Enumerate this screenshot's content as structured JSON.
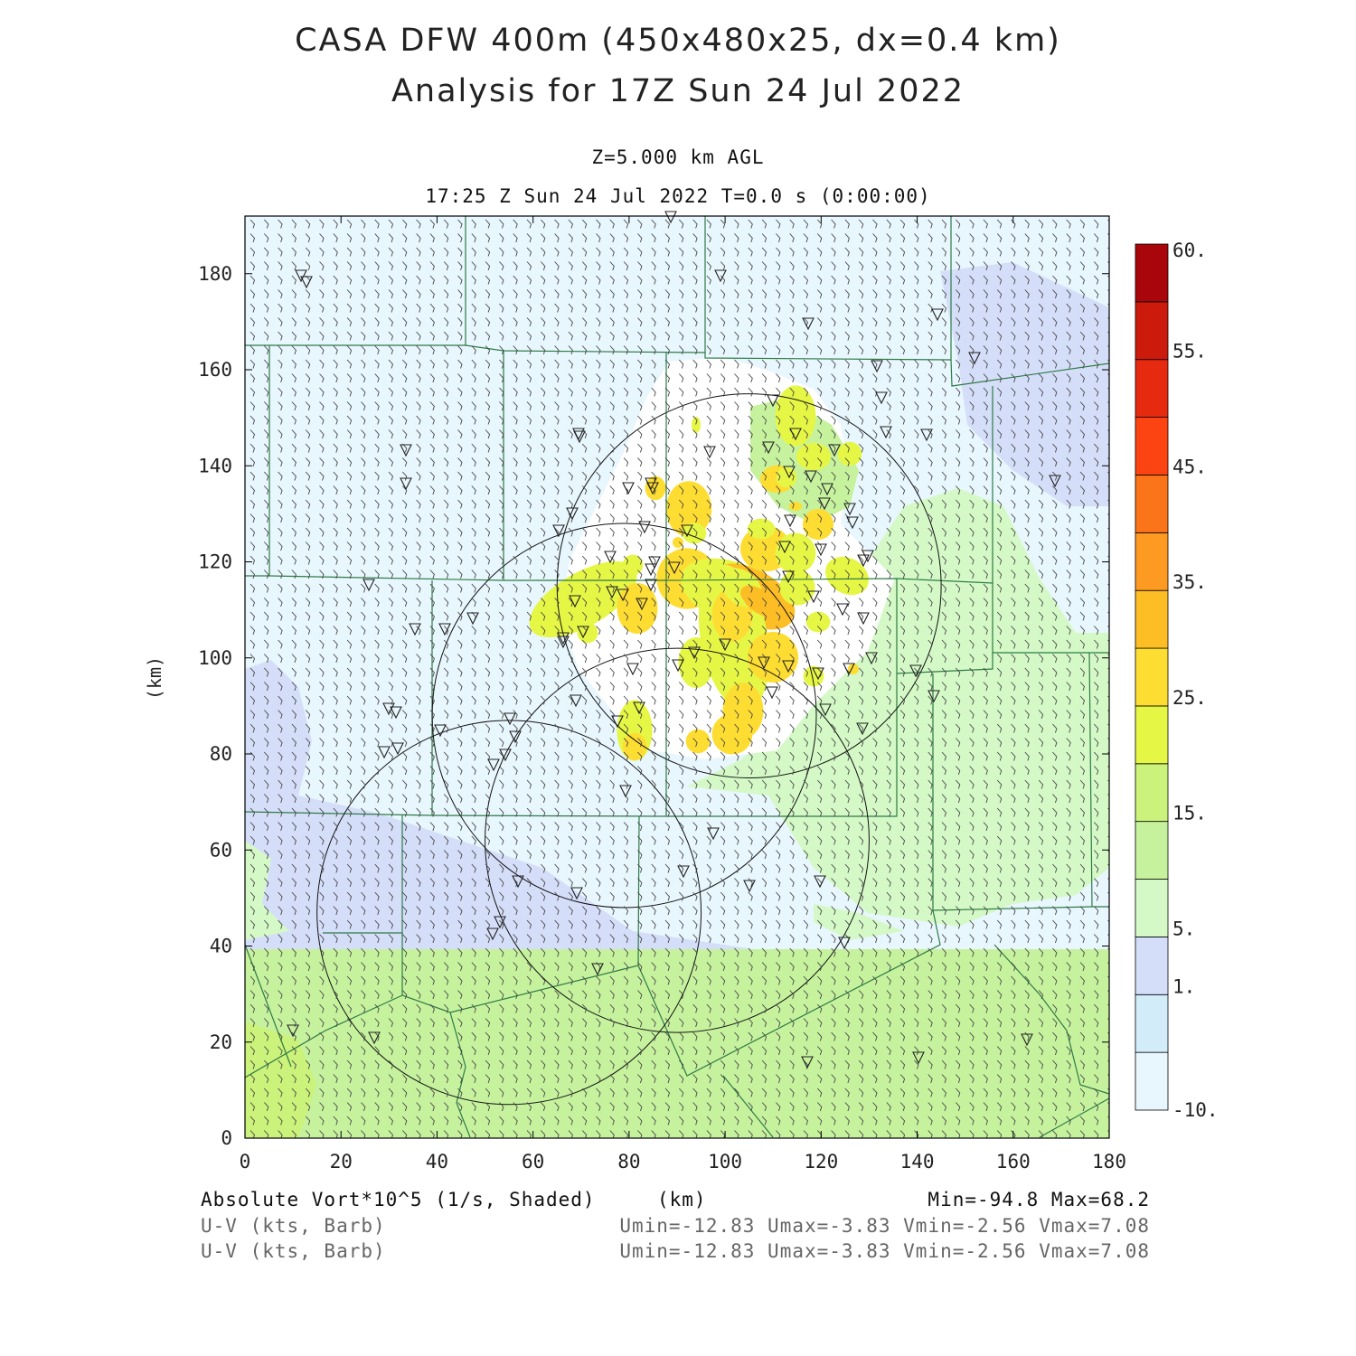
{
  "header": {
    "title_line1": "CASA DFW 400m (450x480x25, dx=0.4 km)",
    "title_line2": "Analysis for 17Z Sun 24 Jul 2022",
    "level": "Z=5.000 km AGL",
    "time": "17:25 Z Sun 24 Jul 2022    T=0.0 s (0:00:00)"
  },
  "footer": {
    "field1": "Absolute Vort*10^5 (1/s, Shaded)",
    "xunit": "(km)",
    "minmax": "Min=-94.8 Max=68.2",
    "field2": "U-V (kts, Barb)",
    "uv2": "Umin=-12.83 Umax=-3.83 Vmin=-2.56 Vmax=7.08",
    "field3": "U-V (kts, Barb)",
    "uv3": "Umin=-12.83 Umax=-3.83 Vmin=-2.56 Vmax=7.08"
  },
  "chart_data": {
    "type": "heatmap",
    "xlabel": "(km)",
    "ylabel": "(km)",
    "xlim": [
      0,
      180
    ],
    "ylim": [
      0,
      192
    ],
    "xticks": [
      0,
      20,
      40,
      60,
      80,
      100,
      120,
      140,
      160,
      180
    ],
    "yticks": [
      0,
      20,
      40,
      60,
      80,
      100,
      120,
      140,
      160,
      180
    ],
    "colorbar": {
      "levels": [
        -10,
        -5,
        1,
        5,
        10,
        15,
        20,
        25,
        30,
        35,
        40,
        45,
        50,
        55,
        60
      ],
      "labels": [
        "-10.",
        "1.",
        "5.",
        "15.",
        "25.",
        "35.",
        "45.",
        "55.",
        "60."
      ],
      "colors": [
        "#e8f6fd",
        "#d3ecfa",
        "#d5def9",
        "#d4f9c7",
        "#c6f29e",
        "#cbf27a",
        "#e6f644",
        "#fedd32",
        "#fdbd25",
        "#fd9a22",
        "#fc7419",
        "#fc4412",
        "#e52a10",
        "#cc1a0c",
        "#a8060a"
      ]
    },
    "range_rings": [
      {
        "center_km": [
          105,
          115
        ],
        "radius_km": 40
      },
      {
        "center_km": [
          79,
          88
        ],
        "radius_km": 40
      },
      {
        "center_km": [
          90,
          62
        ],
        "radius_km": 40
      },
      {
        "center_km": [
          55,
          47
        ],
        "radius_km": 40
      }
    ],
    "min": -94.8,
    "max": 68.2,
    "wind_umin": -12.83,
    "wind_umax": -3.83,
    "wind_vmin": -2.56,
    "wind_vmax": 7.08
  }
}
